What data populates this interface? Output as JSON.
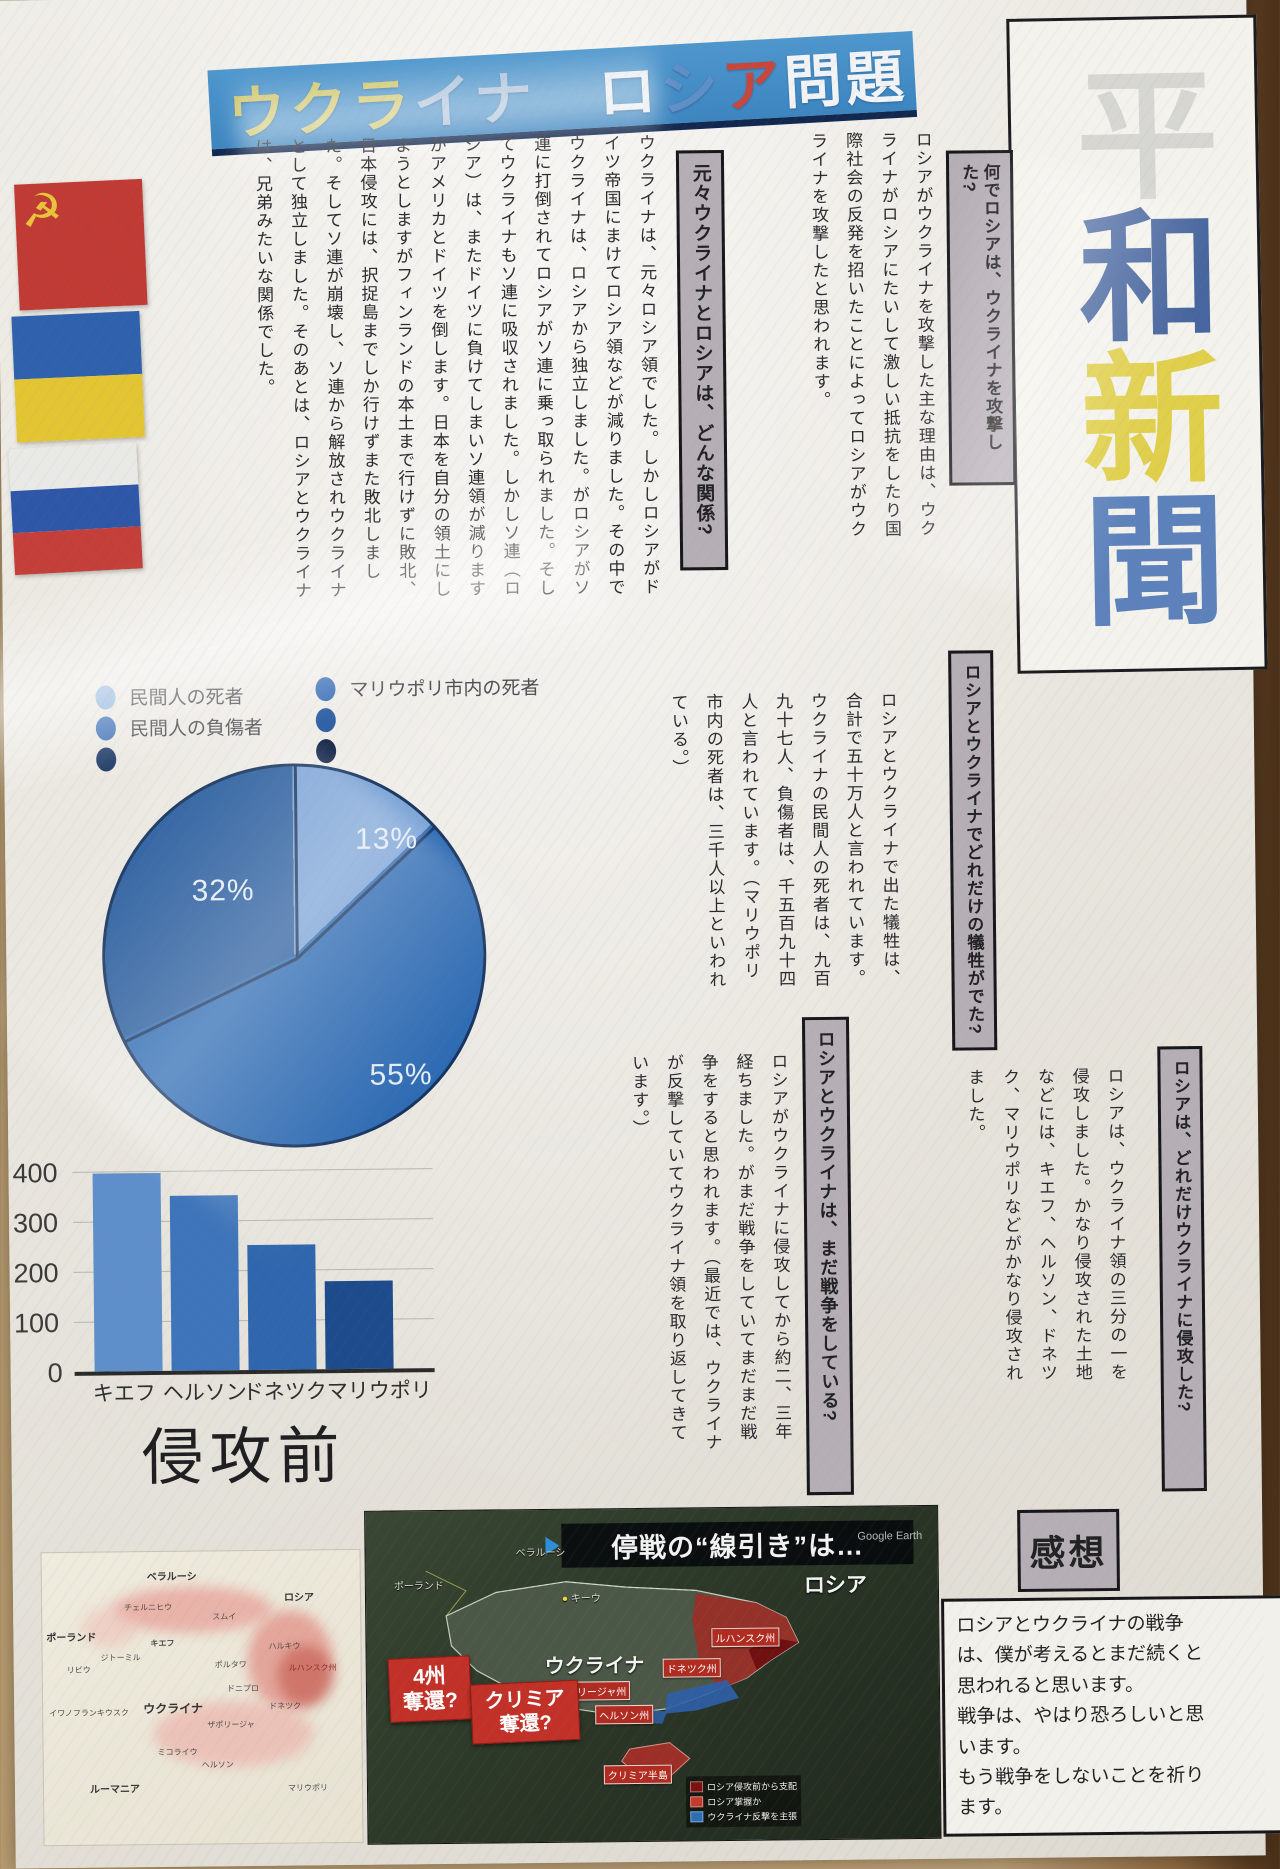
{
  "banner": {
    "segments": [
      {
        "text": "ウクラ",
        "color": "#cfc66b"
      },
      {
        "text": "イナ",
        "color": "#a9c0da"
      },
      {
        "text": "　",
        "color": "#ffffff"
      },
      {
        "text": "ロ",
        "color": "#e9edf0"
      },
      {
        "text": "シ",
        "color": "#5f8fc7"
      },
      {
        "text": "ア",
        "color": "#c7473d"
      },
      {
        "text": "問題",
        "color": "#f1f3f5"
      }
    ]
  },
  "masthead": {
    "chars": [
      {
        "ch": "平",
        "color": "#d6d6d2"
      },
      {
        "ch": "和",
        "color": "#47659e"
      },
      {
        "ch": "新",
        "color": "#e0cf4b"
      },
      {
        "ch": "聞",
        "color": "#5d82bb"
      }
    ]
  },
  "flags": {
    "soviet": {
      "name": "ソ連国旗",
      "field": "#bf3b34",
      "emblem": "☭",
      "emblem_color": "#e8c43a"
    },
    "ukraine": {
      "name": "ウクライナ国旗",
      "top": "#2f61ad",
      "bottom": "#e3c433"
    },
    "russia": {
      "name": "ロシア国旗",
      "stripes": [
        "#e9e9e6",
        "#2f57a8",
        "#c43f3a"
      ]
    }
  },
  "sections": [
    {
      "question": "何でロシアは、ウクライナを攻撃した?",
      "answer": "ロシアがウクライナを攻撃した主な理由は、ウクライナがロシアにたいして激しい抵抗をしたり国際社会の反発を招いたことによってロシアがウクライナを攻撃したと思われます。"
    },
    {
      "question": "元々ウクライナとロシアは、どんな関係?",
      "answer": "ウクライナは、元々ロシア領でした。しかしロシアがドイツ帝国にまけてロシア領などが減りました。その中でウクライナは、ロシアから独立しました。がロシアがソ連に打倒されてロシアがソ連に乗っ取られました。そしてウクライナもソ連に吸収されました。しかしソ連（ロシア）は、またドイツに負けてしまいソ連領が減りますがアメリカとドイツを倒します。日本を自分の領土にしようとしますがフィンランドの本土まで行けずに敗北、日本侵攻には、択捉島までしか行けずまた敗北しました。そしてソ連が崩壊し、ソ連から解放されウクライナとして独立しました。そのあとは、ロシアとウクライナは、兄弟みたいな関係でした。"
    },
    {
      "question": "ロシアとウクライナでどれだけの犠牲がでた?",
      "answer": "ロシアとウクライナで出た犠牲は、合計で五十万人と言われています。ウクライナの民間人の死者は、九百九十七人、負傷者は、千五百九十四人と言われています。（マリウポリ市内の死者は、三千人以上といわれている。）"
    },
    {
      "question": "ロシアとウクライナは、まだ戦争をしている?",
      "answer": "ロシアがウクライナに侵攻してから約二、三年経ちました。がまだ戦争をしていてまだまだ戦争をすると思われます。（最近では、ウクライナが反撃していてウクライナ領を取り返してきています。）"
    },
    {
      "question": "ロシアは、どれだけウクライナに侵攻した?",
      "answer": "ロシアは、ウクライナ領の三分の一を侵攻しました。かなり侵攻された土地などには、キエフ、ヘルソン、ドネツク、マリウポリなどがかなり侵攻されました。"
    }
  ],
  "pie_legend": {
    "left": [
      {
        "label": "民間人の死者",
        "color": "#8fb4dd"
      },
      {
        "label": "民間人の負傷者",
        "color": "#3f72b8"
      },
      {
        "label": "",
        "color": "#1e3a66"
      }
    ],
    "right": [
      {
        "label": "マリウポリ市内の死者",
        "color": "#3f72b8"
      },
      {
        "label": "",
        "color": "#2f5fa5"
      },
      {
        "label": "",
        "color": "#17284a"
      }
    ]
  },
  "chart_data": [
    {
      "type": "pie",
      "title": "",
      "slices": [
        {
          "label": "民間人の死者",
          "value": 13,
          "display": "13%",
          "color": "#7ba3d6"
        },
        {
          "label": "マリウポリ市内の死者",
          "value": 55,
          "display": "55%",
          "color": "#2d6ab2"
        },
        {
          "label": "民間人の負傷者",
          "value": 32,
          "display": "32%",
          "color": "#2c5f9f"
        }
      ],
      "legend": [
        "民間人の死者",
        "民間人の負傷者",
        "マリウポリ市内の死者"
      ],
      "layout": "slices clockwise from top: 13%, 55%, 32%"
    },
    {
      "type": "bar",
      "categories": [
        "キエフ",
        "ヘルソン",
        "ドネツク",
        "マリウポリ"
      ],
      "values": [
        395,
        350,
        250,
        175
      ],
      "bar_colors": [
        "#5e8fca",
        "#3e74b9",
        "#2f66ad",
        "#1d4b8b"
      ],
      "ylim": [
        0,
        400
      ],
      "yticks": [
        400,
        300,
        200,
        100,
        0
      ],
      "caption": "侵攻前"
    }
  ],
  "small_map": {
    "labels": [
      "ベラルーシ",
      "ポーランド",
      "ロシア",
      "チェルニヒウ",
      "スムイ",
      "キエフ",
      "ハルキウ",
      "ジトーミル",
      "リビウ",
      "ポルタワ",
      "ルハンスク州",
      "ドニプロ",
      "イワノフランキウスク",
      "ウクライナ",
      "ザポリージャ",
      "ドネツク",
      "ミコライウ",
      "ヘルソン",
      "ルーマニア",
      "マリウポリ"
    ]
  },
  "dark_map": {
    "title": "停戦の“線引き”は…",
    "watermark": "Google Earth",
    "labels": {
      "poland": "ポーランド",
      "belarus": "ベラルーシ",
      "russia": "ロシア",
      "ukraine": "ウクライナ",
      "kyiv": "キーウ"
    },
    "regions": [
      "ルハンスク州",
      "ドネツク州",
      "ザポリージャ州",
      "ヘルソン州",
      "クリミア半島"
    ],
    "callouts": [
      {
        "line1": "4州",
        "line2": "奪還?"
      },
      {
        "line1": "クリミア",
        "line2": "奪還?"
      }
    ],
    "legend": [
      {
        "label": "ロシア侵攻前から支配",
        "color": "#7a1010"
      },
      {
        "label": "ロシア掌握か",
        "color": "#c0392b"
      },
      {
        "label": "ウクライナ反撃を主張",
        "color": "#2e6db4"
      }
    ]
  },
  "impressions": {
    "label": "感想",
    "text": "ロシアとウクライナの戦争\nは、僕が考えるとまだ続くと\n思われると思います。\n戦争は、やはり恐ろしいと思\nいます。\nもう戦争をしないことを祈り\nます。"
  }
}
